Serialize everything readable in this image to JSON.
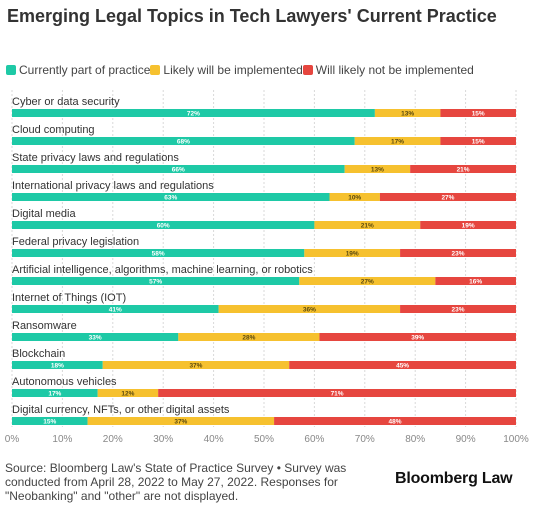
{
  "title": "Emerging Legal Topics in Tech Lawyers' Current Practice",
  "legend": [
    {
      "label": "Currently part of practice",
      "color": "#1ec9a6"
    },
    {
      "label": "Likely will be implemented",
      "color": "#f6c12f"
    },
    {
      "label": "Will likely not be implemented",
      "color": "#e6463f"
    }
  ],
  "chart_data": {
    "type": "bar",
    "orientation": "horizontal",
    "stacked": true,
    "categories": [
      "Cyber or data security",
      "Cloud computing",
      "State privacy laws and regulations",
      "International privacy laws and regulations",
      "Digital media",
      "Federal privacy legislation",
      "Artificial intelligence, algorithms, machine learning, or robotics",
      "Internet of Things (IOT)",
      "Ransomware",
      "Blockchain",
      "Autonomous vehicles",
      "Digital currency, NFTs, or other digital assets"
    ],
    "series": [
      {
        "name": "Currently part of practice",
        "color": "#1ec9a6",
        "values": [
          72,
          68,
          66,
          63,
          60,
          58,
          57,
          41,
          33,
          18,
          17,
          15
        ]
      },
      {
        "name": "Likely will be implemented",
        "color": "#f6c12f",
        "values": [
          13,
          17,
          13,
          10,
          21,
          19,
          27,
          36,
          28,
          37,
          12,
          37
        ]
      },
      {
        "name": "Will likely not be implemented",
        "color": "#e6463f",
        "values": [
          15,
          15,
          21,
          27,
          19,
          23,
          16,
          23,
          39,
          45,
          71,
          48
        ]
      }
    ],
    "xlim": [
      0,
      100
    ],
    "xticks": [
      "0%",
      "10%",
      "20%",
      "30%",
      "40%",
      "50%",
      "60%",
      "70%",
      "80%",
      "90%",
      "100%"
    ],
    "grid": true,
    "legend_position": "top-left"
  },
  "footer": {
    "source": "Source: Bloomberg Law's State of Practice Survey • Survey was conducted from April 28, 2022 to May 27, 2022. Responses for \"Neobanking\" and \"other\" are not displayed.",
    "brand": "Bloomberg Law"
  }
}
